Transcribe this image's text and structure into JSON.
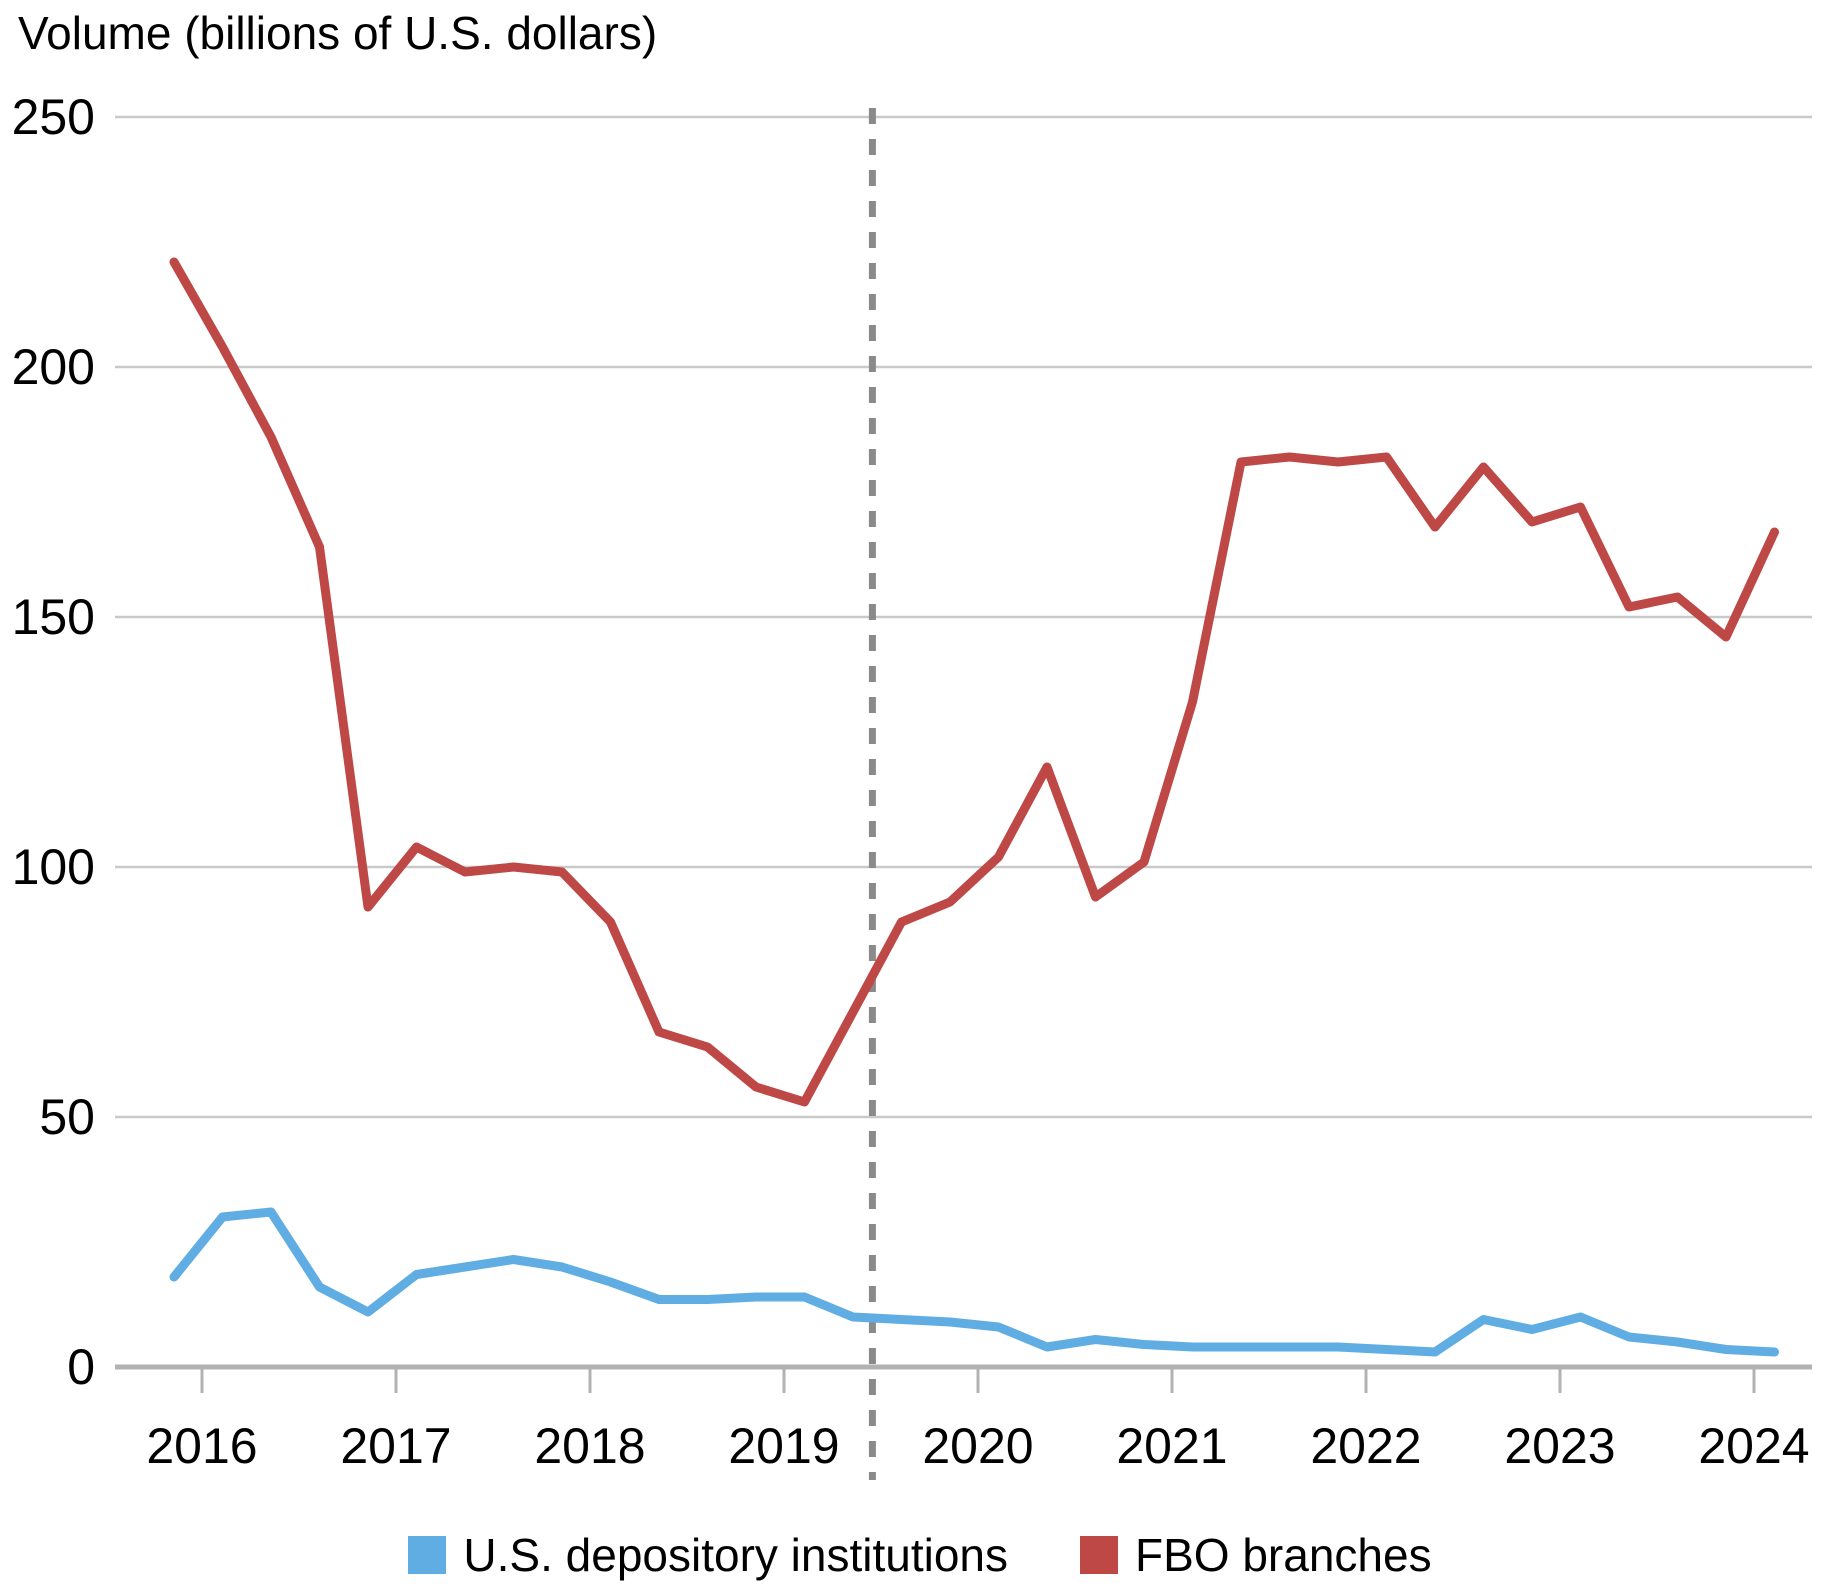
{
  "chart_data": {
    "type": "line",
    "title": "Volume (billions of U.S. dollars)",
    "grid": "horizontal",
    "legend_position": "bottom-center",
    "y_axis": {
      "min": 0,
      "max": 250,
      "tick_step": 50,
      "tick_labels": [
        "0",
        "50",
        "100",
        "150",
        "200",
        "250"
      ]
    },
    "x_axis": {
      "tick_labels": [
        "2016",
        "2017",
        "2018",
        "2019",
        "2020",
        "2021",
        "2022",
        "2023",
        "2024"
      ]
    },
    "x_quarters": [
      "2015 Q4",
      "2016 Q1",
      "2016 Q2",
      "2016 Q3",
      "2016 Q4",
      "2017 Q1",
      "2017 Q2",
      "2017 Q3",
      "2017 Q4",
      "2018 Q1",
      "2018 Q2",
      "2018 Q3",
      "2018 Q4",
      "2019 Q1",
      "2019 Q2",
      "2019 Q3",
      "2019 Q4",
      "2020 Q1",
      "2020 Q2",
      "2020 Q3",
      "2020 Q4",
      "2021 Q1",
      "2021 Q2",
      "2021 Q3",
      "2021 Q4",
      "2022 Q1",
      "2022 Q2",
      "2022 Q3",
      "2022 Q4",
      "2023 Q1",
      "2023 Q2",
      "2023 Q3",
      "2023 Q4",
      "2024 Q1"
    ],
    "series": [
      {
        "name": "U.S. depository institutions",
        "color": "#5fade2",
        "values": [
          18,
          30,
          31,
          16,
          11,
          18.5,
          20,
          21.5,
          20,
          17,
          13.5,
          13.5,
          14,
          14,
          10,
          9.5,
          9,
          8,
          4,
          5.5,
          4.5,
          4,
          4,
          4,
          4,
          3.5,
          3,
          9.5,
          7.5,
          10,
          6,
          5,
          3.5,
          3
        ]
      },
      {
        "name": "FBO branches",
        "color": "#bd4846",
        "values": [
          221,
          204,
          186,
          164,
          92,
          104,
          99,
          100,
          99,
          89,
          67,
          64,
          56,
          53,
          71,
          89,
          93,
          102,
          120,
          94,
          101,
          133,
          181,
          182,
          181,
          182,
          168,
          180,
          169,
          172,
          152,
          154,
          146,
          167
        ]
      }
    ],
    "annotations": {
      "dashed_vline": {
        "x_quarter_index": 14.4
      }
    }
  },
  "colors": {
    "grid_line": "#c9c9c9",
    "axis_line": "#b2b2b2",
    "tick_mark": "#b2b2b2",
    "dashed_line": "#8a8a8a",
    "text": "#000000",
    "background": "#ffffff"
  }
}
